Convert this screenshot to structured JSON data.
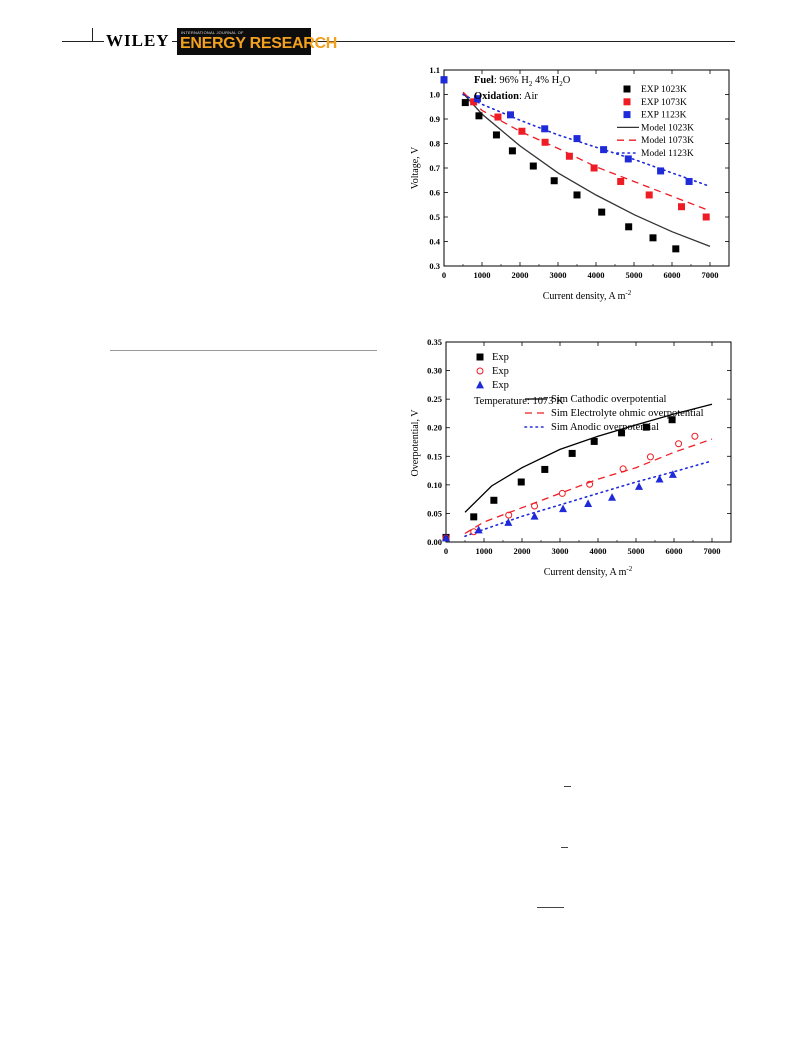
{
  "header": {
    "publisher": "WILEY",
    "journal_small": "INTERNATIONAL JOURNAL OF",
    "journal_big": "ENERGY RESEARCH"
  },
  "chart_data": [
    {
      "type": "scatter",
      "xlabel": "Current density, A m",
      "xlabel_sup": "-2",
      "ylabel": "Voltage, V",
      "xlim": [
        0,
        7500
      ],
      "ylim": [
        0.3,
        1.1
      ],
      "xticks": [
        0,
        1000,
        2000,
        3000,
        4000,
        5000,
        6000,
        7000
      ],
      "yticks": [
        0.3,
        0.4,
        0.5,
        0.6,
        0.7,
        0.8,
        0.9,
        1.0,
        1.1
      ],
      "annotations": {
        "fuel_label": "Fuel",
        "fuel_text": ":  96% H",
        "fuel_sub1": "2",
        "fuel_mid": " 4% H",
        "fuel_sub2": "2",
        "fuel_end": "O",
        "ox_label": "Oxidation",
        "ox_text": ": Air"
      },
      "colors": {
        "exp1023": "#000000",
        "exp1073": "#ee1c24",
        "exp1123": "#1f2bd8"
      },
      "series": [
        {
          "name": "EXP 1023K",
          "kind": "marker",
          "marker": "square",
          "color": "#000000",
          "x": [
            0,
            560,
            920,
            1380,
            1800,
            2350,
            2900,
            3500,
            4150,
            4860,
            5500,
            6100
          ],
          "y": [
            1.06,
            0.967,
            0.913,
            0.835,
            0.77,
            0.708,
            0.648,
            0.59,
            0.52,
            0.46,
            0.415,
            0.37
          ]
        },
        {
          "name": "EXP 1073K",
          "kind": "marker",
          "marker": "square",
          "color": "#ee1c24",
          "x": [
            780,
            1420,
            2050,
            2660,
            3300,
            3950,
            4650,
            5400,
            6250,
            6900
          ],
          "y": [
            0.97,
            0.908,
            0.85,
            0.805,
            0.748,
            0.7,
            0.645,
            0.59,
            0.542,
            0.5
          ],
          "seg_x": [
            580
          ],
          "seg_y": [
            0.96
          ]
        },
        {
          "name": "EXP 1123K",
          "kind": "marker",
          "marker": "square",
          "color": "#1f2bd8",
          "x": [
            0,
            880,
            1750,
            2650,
            3500,
            4200,
            4850,
            5700,
            6450
          ],
          "y": [
            1.06,
            0.983,
            0.917,
            0.86,
            0.82,
            0.775,
            0.737,
            0.688,
            0.645
          ]
        },
        {
          "name": "Model 1023K",
          "kind": "line",
          "dash": "solid",
          "color": "#333333",
          "x": [
            500,
            1000,
            2000,
            3000,
            4000,
            5000,
            6000,
            7000
          ],
          "y": [
            1.005,
            0.92,
            0.79,
            0.68,
            0.59,
            0.51,
            0.44,
            0.38
          ]
        },
        {
          "name": "Model 1073K",
          "kind": "line",
          "dash": "dashed",
          "color": "#ee1c24",
          "x": [
            500,
            1000,
            2000,
            3000,
            4000,
            5000,
            6000,
            7000
          ],
          "y": [
            1.01,
            0.935,
            0.85,
            0.78,
            0.705,
            0.645,
            0.585,
            0.525
          ]
        },
        {
          "name": "Model 1123K",
          "kind": "line",
          "dash": "dotted",
          "color": "#1f2bd8",
          "x": [
            500,
            1000,
            2000,
            3000,
            4000,
            5000,
            6000,
            7000
          ],
          "y": [
            1.0,
            0.96,
            0.895,
            0.835,
            0.785,
            0.735,
            0.68,
            0.625
          ]
        }
      ]
    },
    {
      "type": "scatter",
      "xlabel": "Current density, A m",
      "xlabel_sup": "-2",
      "ylabel": "Overpotential, V",
      "xlim": [
        0,
        7500
      ],
      "ylim": [
        0.0,
        0.35
      ],
      "xticks": [
        0,
        1000,
        2000,
        3000,
        4000,
        5000,
        6000,
        7000
      ],
      "yticks": [
        "0.00",
        "0.05",
        "0.10",
        "0.15",
        "0.20",
        "0.25",
        "0.30",
        "0.35"
      ],
      "annotation": "Temperature: 1073 K",
      "colors": {
        "cathodic": "#000000",
        "ohmic": "#ee1c24",
        "anodic": "#1f2bd8"
      },
      "series": [
        {
          "name": "Exp",
          "kind": "marker",
          "marker": "square",
          "color": "#000000",
          "x": [
            0,
            730,
            1260,
            1980,
            2600,
            3320,
            3900,
            4620,
            5270,
            5950
          ],
          "y": [
            0.008,
            0.044,
            0.073,
            0.105,
            0.127,
            0.155,
            0.176,
            0.191,
            0.201,
            0.214
          ]
        },
        {
          "name": "Exp",
          "kind": "marker",
          "marker": "circle-open",
          "color": "#ee1c24",
          "x": [
            0,
            730,
            1650,
            2330,
            3060,
            3780,
            4660,
            5380,
            6120,
            6550
          ],
          "y": [
            0.007,
            0.018,
            0.047,
            0.063,
            0.085,
            0.101,
            0.128,
            0.149,
            0.172,
            0.185
          ]
        },
        {
          "name": "Exp",
          "kind": "marker",
          "marker": "triangle",
          "color": "#1f2bd8",
          "x": [
            0,
            860,
            1640,
            2330,
            3080,
            3740,
            4370,
            5080,
            5620,
            5970
          ],
          "y": [
            0.007,
            0.021,
            0.034,
            0.045,
            0.058,
            0.067,
            0.078,
            0.097,
            0.11,
            0.118
          ]
        },
        {
          "name": "Sim Cathodic overpotential",
          "kind": "line",
          "dash": "solid",
          "color": "#000000",
          "x": [
            500,
            1200,
            2000,
            3000,
            4000,
            5000,
            6000,
            7000
          ],
          "y": [
            0.052,
            0.098,
            0.13,
            0.162,
            0.185,
            0.205,
            0.224,
            0.241
          ]
        },
        {
          "name": "Sim Electrolyte ohmic overpotential",
          "kind": "line",
          "dash": "dashed",
          "color": "#ee1c24",
          "x": [
            500,
            1000,
            2000,
            3000,
            4000,
            5000,
            6000,
            7000
          ],
          "y": [
            0.015,
            0.035,
            0.06,
            0.085,
            0.11,
            0.13,
            0.157,
            0.18
          ]
        },
        {
          "name": "Sim Anodic overpotential",
          "kind": "line",
          "dash": "dotted",
          "color": "#1f2bd8",
          "x": [
            500,
            1000,
            2000,
            3000,
            4000,
            5000,
            6000,
            7000
          ],
          "y": [
            0.01,
            0.022,
            0.045,
            0.065,
            0.085,
            0.105,
            0.123,
            0.142
          ]
        }
      ]
    }
  ]
}
